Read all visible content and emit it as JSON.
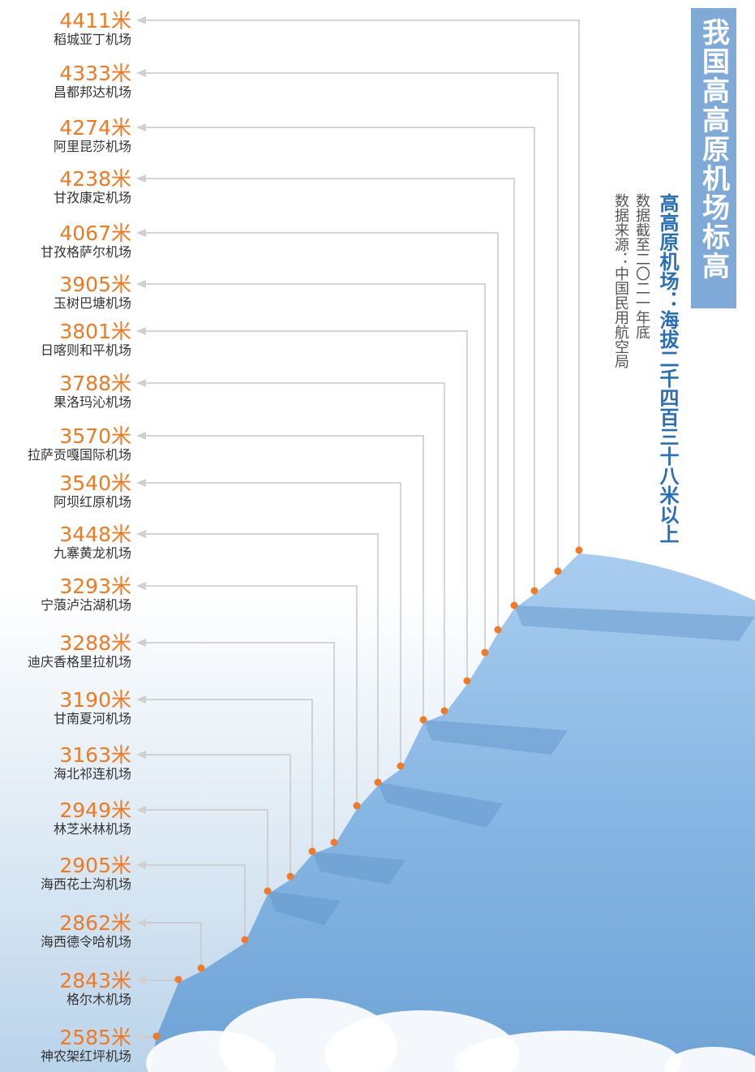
{
  "title": "我国高高原机场标高",
  "subtitle": "高高原机场：海拔二千四百三十八米以上",
  "notes": [
    "数据截至二〇二一年底",
    "数据来源：中国民用航空局"
  ],
  "airports": [
    {
      "elevation": "4411米",
      "name": "稻城亚丁机场"
    },
    {
      "elevation": "4333米",
      "name": "昌都邦达机场"
    },
    {
      "elevation": "4274米",
      "name": "阿里昆莎机场"
    },
    {
      "elevation": "4238米",
      "name": "甘孜康定机场"
    },
    {
      "elevation": "4067米",
      "name": "甘孜格萨尔机场"
    },
    {
      "elevation": "3905米",
      "name": "玉树巴塘机场"
    },
    {
      "elevation": "3801米",
      "name": "日喀则和平机场"
    },
    {
      "elevation": "3788米",
      "name": "果洛玛沁机场"
    },
    {
      "elevation": "3570米",
      "name": "拉萨贡嘎国际机场"
    },
    {
      "elevation": "3540米",
      "name": "阿坝红原机场"
    },
    {
      "elevation": "3448米",
      "name": "九寨黄龙机场"
    },
    {
      "elevation": "3293米",
      "name": "宁蒗泸沽湖机场"
    },
    {
      "elevation": "3288米",
      "name": "迪庆香格里拉机场"
    },
    {
      "elevation": "3190米",
      "name": "甘南夏河机场"
    },
    {
      "elevation": "3163米",
      "name": "海北祁连机场"
    },
    {
      "elevation": "2949米",
      "name": "林芝米林机场"
    },
    {
      "elevation": "2905米",
      "name": "海西花土沟机场"
    },
    {
      "elevation": "2862米",
      "name": "海西德令哈机场"
    },
    {
      "elevation": "2843米",
      "name": "格尔木机场"
    },
    {
      "elevation": "2585米",
      "name": "神农架红坪机场"
    }
  ]
}
